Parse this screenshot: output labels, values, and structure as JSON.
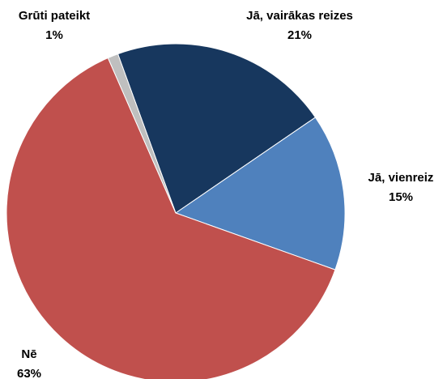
{
  "chart_data": {
    "type": "pie",
    "categories": [
      "Jā, vairākas reizes",
      "Jā, vienreiz",
      "Nē",
      "Grūti pateikt"
    ],
    "values": [
      21,
      15,
      63,
      1
    ],
    "value_labels": [
      "21%",
      "15%",
      "63%",
      "1%"
    ],
    "colors": [
      "#17375e",
      "#4f81bd",
      "#c0504d",
      "#bfbfbf"
    ]
  }
}
